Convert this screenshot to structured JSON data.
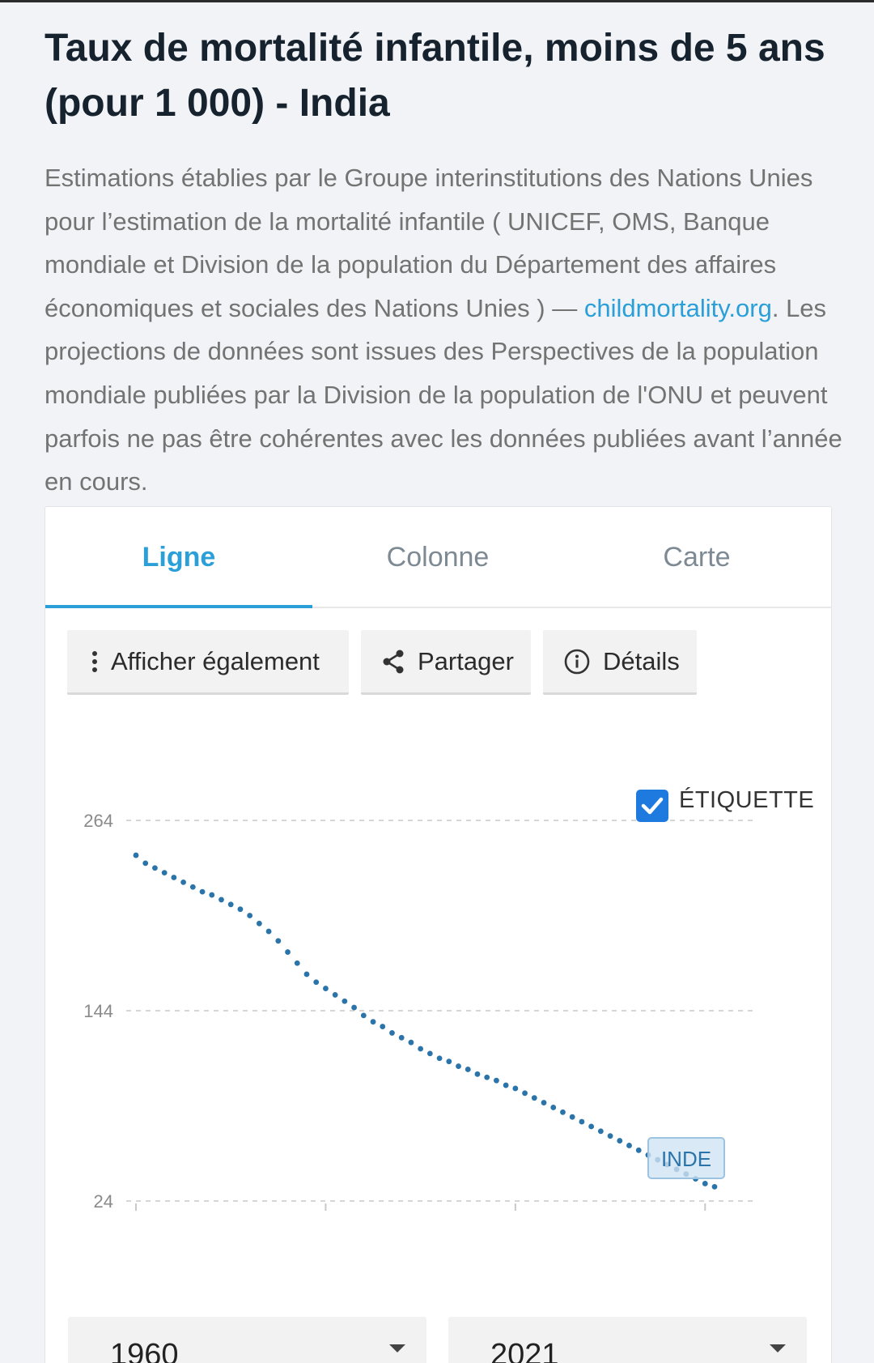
{
  "page": {
    "title": "Taux de mortalité infantile, moins de 5 ans (pour 1 000) - India",
    "description_part1": "Estimations établies par le Groupe interinstitutions des Nations Unies pour l’estimation de la mortalité infantile ( UNICEF, OMS, Banque mondiale et Division de la population du Département des affaires économiques et sociales des Nations Unies ) — ",
    "description_link": "childmortality.org",
    "description_part2": ". Les projections de données sont issues des Perspectives de la population mondiale publiées par la Division de la population de l'ONU et peuvent parfois ne pas être cohérentes avec les données publiées avant l’année en cours."
  },
  "tabs": {
    "line": "Ligne",
    "column": "Colonne",
    "map": "Carte",
    "active": "line"
  },
  "toolbar": {
    "show_also": "Afficher également",
    "share": "Partager",
    "details": "Détails"
  },
  "colors": {
    "accent": "#2a9fd8",
    "series": "#2b74a9",
    "checkbox": "#1f7ae0",
    "label_bg": "#cfe3f3"
  },
  "label_toggle": {
    "label": "ÉTIQUETTE",
    "checked": true
  },
  "range": {
    "start_year": "1960",
    "end_year": "2021"
  },
  "chart_data": {
    "type": "line",
    "title": "",
    "xlabel": "",
    "ylabel": "",
    "yticks": [
      24,
      144,
      264
    ],
    "ylim": [
      24,
      264
    ],
    "xlim": [
      1960,
      2021
    ],
    "grid": true,
    "series": [
      {
        "name": "INDE",
        "x": [
          1960,
          1961,
          1962,
          1963,
          1964,
          1965,
          1966,
          1967,
          1968,
          1969,
          1970,
          1971,
          1972,
          1973,
          1974,
          1975,
          1976,
          1977,
          1978,
          1979,
          1980,
          1981,
          1982,
          1983,
          1984,
          1985,
          1986,
          1987,
          1988,
          1989,
          1990,
          1991,
          1992,
          1993,
          1994,
          1995,
          1996,
          1997,
          1998,
          1999,
          2000,
          2001,
          2002,
          2003,
          2004,
          2005,
          2006,
          2007,
          2008,
          2009,
          2010,
          2011,
          2012,
          2013,
          2014,
          2015,
          2016,
          2017,
          2018,
          2019,
          2020,
          2021
        ],
        "values": [
          242,
          237,
          234,
          231,
          228,
          225,
          222,
          219,
          217,
          214,
          211,
          208,
          204,
          199,
          194,
          188,
          181,
          174,
          167,
          162,
          158,
          154,
          150,
          146,
          141,
          137,
          134,
          130,
          127,
          124,
          120,
          117,
          114,
          112,
          109,
          107,
          104,
          102,
          100,
          97,
          95,
          92,
          89,
          86,
          83,
          80,
          77,
          74,
          71,
          68,
          65,
          62,
          59,
          56,
          53,
          50,
          47,
          44,
          41,
          38,
          35,
          33
        ]
      }
    ]
  }
}
